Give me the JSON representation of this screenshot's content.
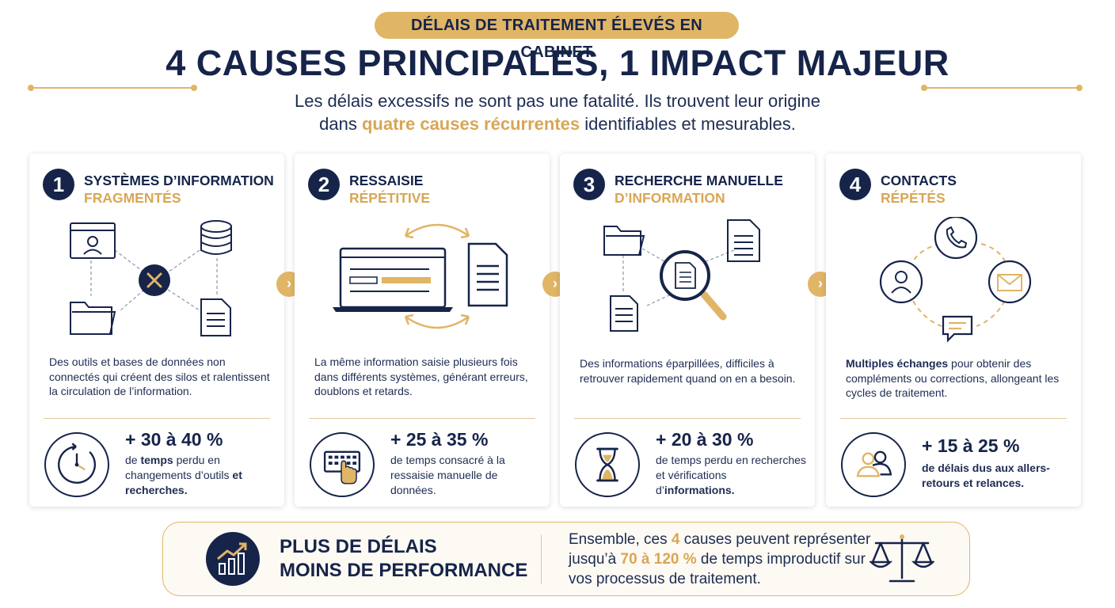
{
  "header": {
    "badge": "DÉLAIS DE TRAITEMENT ÉLEVÉS EN CABINET",
    "title": "4 CAUSES PRINCIPALES, 1 IMPACT MAJEUR",
    "subtitle_line1": "Les délais excessifs ne sont pas une fatalité. Ils trouvent leur origine",
    "subtitle_prefix": "dans ",
    "subtitle_highlight": "quatre causes récurrentes",
    "subtitle_suffix": " identifiables et mesurables."
  },
  "cards": [
    {
      "number": "1",
      "title_line1": "SYSTÈMES D’INFORMATION",
      "title_line2": "FRAGMENTÉS",
      "description": "Des outils et bases de données non connectés qui créent des silos et ralentissent la circulation de l’information.",
      "stat_value": "+ 30 à 40 %",
      "stat_label_pre": "de ",
      "stat_label_bold1": "temps",
      "stat_label_mid": " perdu en changements d’outils ",
      "stat_label_bold2": "et recherches."
    },
    {
      "number": "2",
      "title_line1": "RESSAISIE",
      "title_line2": "RÉPÉTITIVE",
      "description": "La même information saisie plusieurs fois dans différents systèmes, générant erreurs, doublons et retards.",
      "stat_value": "+ 25 à 35 %",
      "stat_label": "de temps consacré à la ressaisie manuelle de données."
    },
    {
      "number": "3",
      "title_line1": "RECHERCHE MANUELLE",
      "title_line2": "D’INFORMATION",
      "description": "Des informations éparpillées, difficiles à retrouver rapidement quand on en a besoin.",
      "stat_value": "+ 20 à 30 %",
      "stat_label_pre": "de temps perdu en recherches et vérifications d’",
      "stat_label_bold": "informations."
    },
    {
      "number": "4",
      "title_line1": "CONTACTS",
      "title_line2": "RÉPÉTÉS",
      "description_bold": "Multiples échanges",
      "description_rest": " pour obtenir des compléments ou corrections, allongeant les cycles de traitement.",
      "stat_value": "+ 15 à 25 %",
      "stat_label": "de délais dus aux allers-retours et relances."
    }
  ],
  "bottom": {
    "title_line1": "PLUS DE DÉLAIS",
    "title_line2": "MOINS DE PERFORMANCE",
    "text_pre": "Ensemble, ces ",
    "text_hl1": "4",
    "text_mid1": " causes peuvent représenter jusqu’à ",
    "text_hl2": "70 à 120 %",
    "text_post": " de temps improductif sur vos processus de traitement."
  },
  "icons": [
    "user-profile-icon",
    "database-icon",
    "cross-icon",
    "folder-icon",
    "document-icon",
    "laptop-icon",
    "sync-arrows-icon",
    "magnifier-icon",
    "phone-icon",
    "person-icon",
    "mail-icon",
    "chat-icon",
    "clock-icon",
    "keyboard-hand-icon",
    "hourglass-icon",
    "people-icon",
    "growth-chart-icon",
    "scale-icon",
    "chevron-right-icon"
  ],
  "colors": {
    "navy": "#16244a",
    "gold": "#e0b565",
    "gold_text": "#d9a655"
  }
}
